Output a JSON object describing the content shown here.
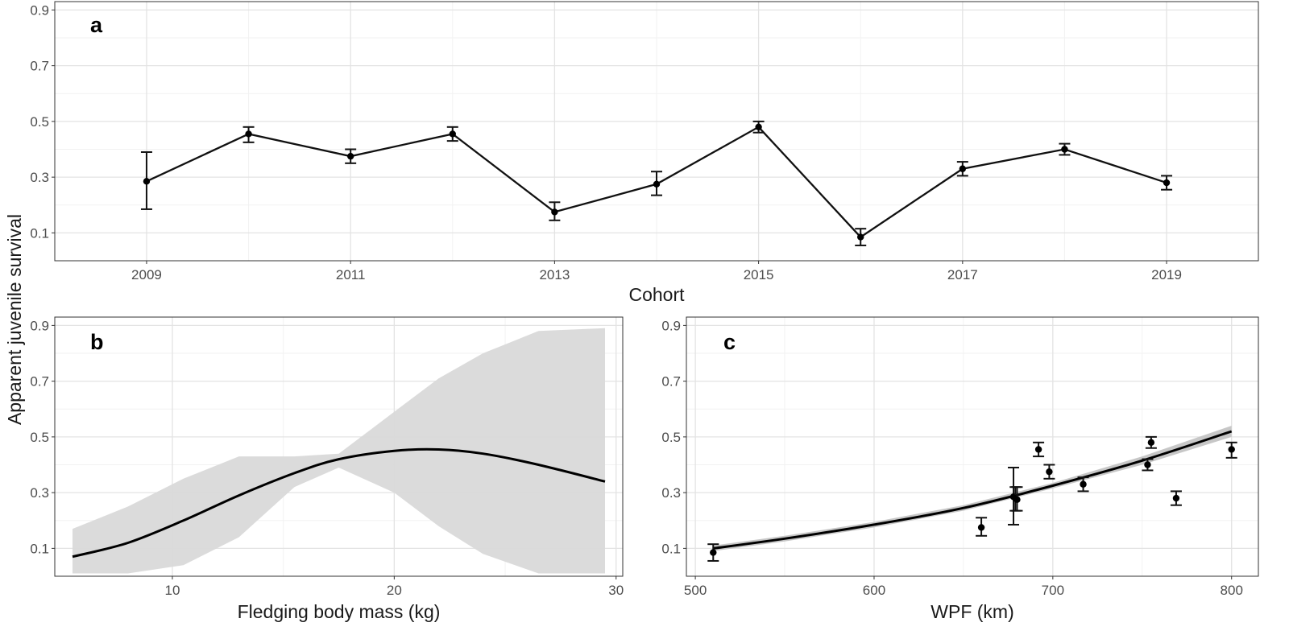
{
  "shared": {
    "ylabel": "Apparent juvenile survival"
  },
  "chart_data": [
    {
      "panel": "a",
      "type": "line",
      "xlabel": "Cohort",
      "ylabel": "Apparent juvenile survival",
      "xlim": [
        2008.1,
        2019.9
      ],
      "ylim": [
        0,
        0.93
      ],
      "yticks": [
        0.1,
        0.3,
        0.5,
        0.7,
        0.9
      ],
      "xticks": [
        2009,
        2011,
        2013,
        2015,
        2017,
        2019
      ],
      "grid": true,
      "x": [
        2009,
        2010,
        2011,
        2012,
        2013,
        2014,
        2015,
        2016,
        2017,
        2018,
        2019
      ],
      "y": [
        0.285,
        0.455,
        0.375,
        0.455,
        0.175,
        0.275,
        0.48,
        0.085,
        0.33,
        0.4,
        0.28
      ],
      "lower": [
        0.185,
        0.425,
        0.35,
        0.43,
        0.145,
        0.235,
        0.46,
        0.055,
        0.305,
        0.38,
        0.255
      ],
      "upper": [
        0.39,
        0.48,
        0.4,
        0.48,
        0.21,
        0.32,
        0.5,
        0.115,
        0.355,
        0.42,
        0.305
      ]
    },
    {
      "panel": "b",
      "type": "line",
      "xlabel": "Fledging body mass (kg)",
      "ylabel": "Apparent juvenile survival",
      "xlim": [
        4.7,
        30.3
      ],
      "ylim": [
        0,
        0.93
      ],
      "yticks": [
        0.1,
        0.3,
        0.5,
        0.7,
        0.9
      ],
      "xticks": [
        10,
        20,
        30
      ],
      "grid": true,
      "x": [
        5.5,
        8,
        10.5,
        13,
        15.5,
        17.5,
        20,
        22,
        24,
        26.5,
        29.5
      ],
      "y": [
        0.07,
        0.12,
        0.2,
        0.29,
        0.37,
        0.42,
        0.45,
        0.455,
        0.44,
        0.4,
        0.34
      ],
      "lower": [
        0.01,
        0.01,
        0.04,
        0.14,
        0.32,
        0.39,
        0.3,
        0.18,
        0.08,
        0.01,
        0.01
      ],
      "upper": [
        0.17,
        0.25,
        0.35,
        0.43,
        0.43,
        0.44,
        0.59,
        0.71,
        0.8,
        0.88,
        0.89
      ]
    },
    {
      "panel": "c",
      "type": "line",
      "xlabel": "WPF (km)",
      "ylabel": "",
      "xlim": [
        495,
        815
      ],
      "ylim": [
        0,
        0.93
      ],
      "yticks": [
        0.1,
        0.3,
        0.5,
        0.7,
        0.9
      ],
      "xticks": [
        500,
        600,
        700,
        800
      ],
      "grid": true,
      "fit": {
        "x": [
          510,
          550,
          600,
          650,
          700,
          750,
          800
        ],
        "y": [
          0.1,
          0.135,
          0.185,
          0.245,
          0.325,
          0.415,
          0.52
        ],
        "lower": [
          0.09,
          0.125,
          0.175,
          0.235,
          0.315,
          0.4,
          0.5
        ],
        "upper": [
          0.11,
          0.145,
          0.195,
          0.255,
          0.335,
          0.43,
          0.54
        ]
      },
      "points": {
        "x": [
          510,
          660,
          678,
          679,
          680,
          692,
          698,
          717,
          753,
          755,
          769,
          800
        ],
        "y": [
          0.085,
          0.175,
          0.285,
          0.28,
          0.275,
          0.455,
          0.375,
          0.33,
          0.4,
          0.48,
          0.28,
          0.455
        ],
        "lower": [
          0.055,
          0.145,
          0.185,
          0.235,
          0.235,
          0.43,
          0.35,
          0.305,
          0.38,
          0.46,
          0.255,
          0.425
        ],
        "upper": [
          0.115,
          0.21,
          0.39,
          0.32,
          0.32,
          0.48,
          0.4,
          0.355,
          0.42,
          0.5,
          0.305,
          0.48
        ]
      }
    }
  ]
}
